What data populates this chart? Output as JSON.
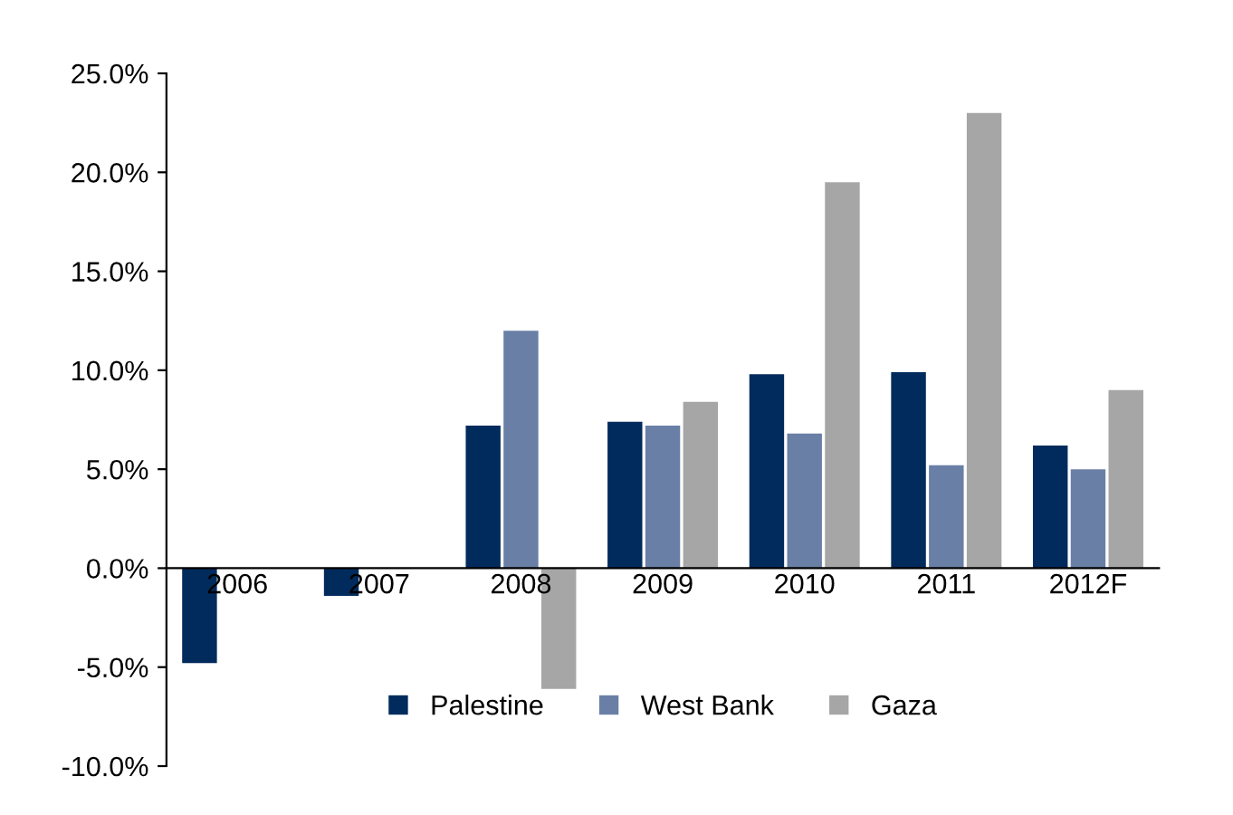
{
  "chart_data": {
    "type": "bar",
    "categories": [
      "2006",
      "2007",
      "2008",
      "2009",
      "2010",
      "2011",
      "2012F"
    ],
    "series": [
      {
        "name": "Palestine",
        "color": "#002b5c",
        "values": [
          -4.8,
          -1.4,
          7.2,
          7.4,
          9.8,
          9.9,
          6.2
        ]
      },
      {
        "name": "West Bank",
        "color": "#6a7fa6",
        "values": [
          null,
          null,
          12.0,
          7.2,
          6.8,
          5.2,
          5.0
        ]
      },
      {
        "name": "Gaza",
        "color": "#a6a6a6",
        "values": [
          null,
          null,
          -6.1,
          8.4,
          19.5,
          23.0,
          9.0
        ]
      }
    ],
    "ylim": [
      -10,
      25
    ],
    "yticks": [
      {
        "value": -10,
        "label": "-10.0%"
      },
      {
        "value": -5,
        "label": "-5.0%"
      },
      {
        "value": 0,
        "label": "0.0%"
      },
      {
        "value": 5,
        "label": "5.0%"
      },
      {
        "value": 10,
        "label": "10.0%"
      },
      {
        "value": 15,
        "label": "15.0%"
      },
      {
        "value": 20,
        "label": "20.0%"
      },
      {
        "value": 25,
        "label": "25.0%"
      }
    ],
    "grid": false,
    "legend": "bottom"
  }
}
